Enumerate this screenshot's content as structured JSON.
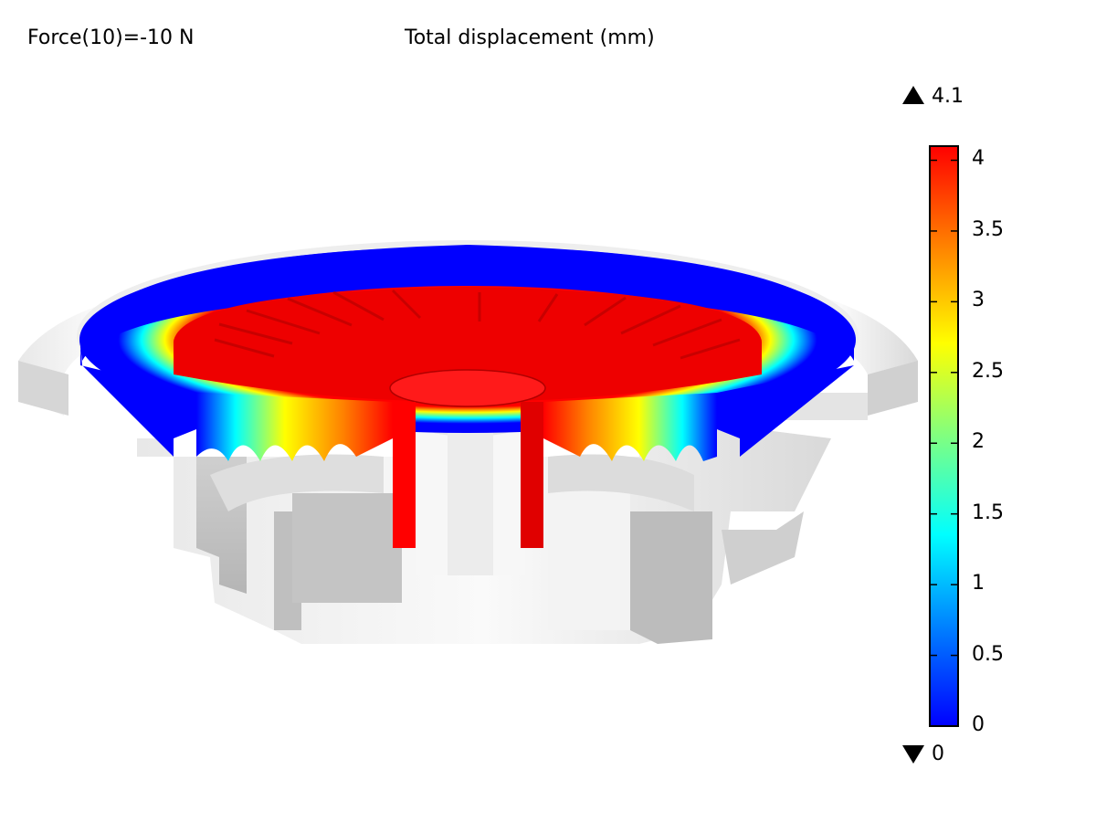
{
  "header": {
    "parameter": "Force(10)=-10 N",
    "title": "Total displacement (mm)"
  },
  "colorbar": {
    "min": 0,
    "max": 4.1,
    "max_marker": "4.1",
    "min_marker": "0",
    "ticks": [
      "4",
      "3.5",
      "3",
      "2.5",
      "2",
      "1.5",
      "1",
      "0.5",
      "0"
    ],
    "colormap": [
      "#0000ff",
      "#0080ff",
      "#00ffff",
      "#80ff80",
      "#ffff00",
      "#ff8000",
      "#ff0000"
    ]
  }
}
